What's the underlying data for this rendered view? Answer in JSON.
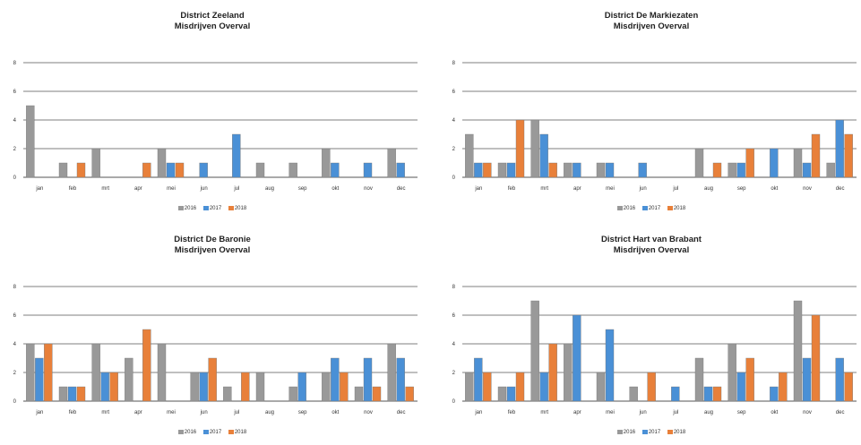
{
  "colors": {
    "s2016": "#999999",
    "s2017": "#4a90d6",
    "s2018": "#e8803a",
    "grid": "#555555"
  },
  "chart_data": [
    {
      "type": "bar",
      "title": "District Zeeland",
      "subtitle": "Misdrijven Overval",
      "categories": [
        "jan",
        "feb",
        "mrt",
        "apr",
        "mei",
        "jun",
        "jul",
        "aug",
        "sep",
        "okt",
        "nov",
        "dec"
      ],
      "ylim": [
        0,
        8
      ],
      "yticks": [
        "0",
        "2",
        "4",
        "6",
        "8"
      ],
      "grid": true,
      "legend": "bottom",
      "series": [
        {
          "name": "2016",
          "values": [
            5,
            1,
            2,
            0,
            2,
            0,
            0,
            1,
            1,
            2,
            0,
            2
          ]
        },
        {
          "name": "2017",
          "values": [
            0,
            0,
            0,
            0,
            1,
            1,
            3,
            0,
            0,
            1,
            1,
            1
          ]
        },
        {
          "name": "2018",
          "values": [
            0,
            1,
            0,
            1,
            1,
            0,
            0,
            0,
            0,
            0,
            0,
            0
          ]
        }
      ]
    },
    {
      "type": "bar",
      "title": "District De Markiezaten",
      "subtitle": "Misdrijven Overval",
      "categories": [
        "jan",
        "feb",
        "mrt",
        "apr",
        "mei",
        "jun",
        "jul",
        "aug",
        "sep",
        "okt",
        "nov",
        "dec"
      ],
      "ylim": [
        0,
        8
      ],
      "yticks": [
        "0",
        "2",
        "4",
        "6",
        "8"
      ],
      "grid": true,
      "legend": "bottom",
      "series": [
        {
          "name": "2016",
          "values": [
            3,
            1,
            4,
            1,
            1,
            0,
            0,
            2,
            1,
            0,
            2,
            1
          ]
        },
        {
          "name": "2017",
          "values": [
            1,
            1,
            3,
            1,
            1,
            1,
            0,
            0,
            1,
            2,
            1,
            4
          ]
        },
        {
          "name": "2018",
          "values": [
            1,
            4,
            1,
            0,
            0,
            0,
            0,
            1,
            2,
            0,
            3,
            3
          ]
        }
      ]
    },
    {
      "type": "bar",
      "title": "District De Baronie",
      "subtitle": "Misdrijven Overval",
      "categories": [
        "jan",
        "feb",
        "mrt",
        "apr",
        "mei",
        "jun",
        "jul",
        "aug",
        "sep",
        "okt",
        "nov",
        "dec"
      ],
      "ylim": [
        0,
        8
      ],
      "yticks": [
        "0",
        "2",
        "4",
        "6",
        "8"
      ],
      "grid": true,
      "legend": "bottom",
      "series": [
        {
          "name": "2016",
          "values": [
            4,
            1,
            4,
            3,
            4,
            2,
            1,
            2,
            1,
            2,
            1,
            4
          ]
        },
        {
          "name": "2017",
          "values": [
            3,
            1,
            2,
            0,
            0,
            2,
            0,
            0,
            2,
            3,
            3,
            3
          ]
        },
        {
          "name": "2018",
          "values": [
            4,
            1,
            2,
            5,
            0,
            3,
            2,
            0,
            0,
            2,
            1,
            1
          ]
        }
      ]
    },
    {
      "type": "bar",
      "title": "District Hart van Brabant",
      "subtitle": "Misdrijven Overval",
      "categories": [
        "jan",
        "feb",
        "mrt",
        "apr",
        "mei",
        "jun",
        "jul",
        "aug",
        "sep",
        "okt",
        "nov",
        "dec"
      ],
      "ylim": [
        0,
        8
      ],
      "yticks": [
        "0",
        "2",
        "4",
        "6",
        "8"
      ],
      "grid": true,
      "legend": "bottom",
      "series": [
        {
          "name": "2016",
          "values": [
            2,
            1,
            7,
            4,
            2,
            1,
            0,
            3,
            4,
            0,
            7,
            0
          ]
        },
        {
          "name": "2017",
          "values": [
            3,
            1,
            2,
            6,
            5,
            0,
            1,
            1,
            2,
            1,
            3,
            3
          ]
        },
        {
          "name": "2018",
          "values": [
            2,
            2,
            4,
            0,
            0,
            2,
            0,
            1,
            3,
            2,
            6,
            2
          ]
        }
      ]
    }
  ]
}
